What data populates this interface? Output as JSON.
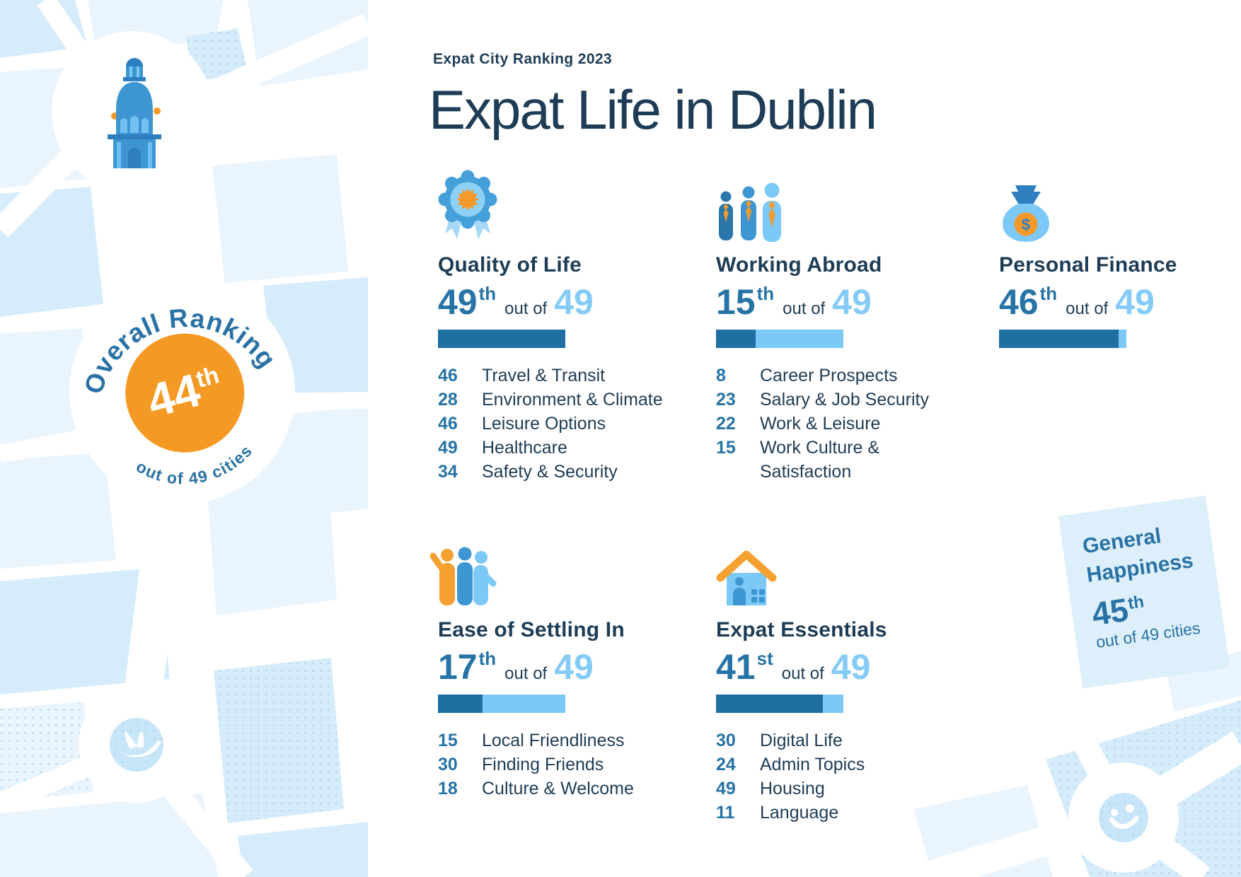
{
  "header": {
    "eyebrow": "Expat City Ranking 2023",
    "title": "Expat Life in Dublin"
  },
  "overall": {
    "label": "Overall Ranking",
    "rank": "44",
    "suffix": "th",
    "sub": "out of 49 cities"
  },
  "general_happiness": {
    "title": "General Happiness",
    "rank": "45",
    "suffix": "th",
    "sub": "out of 49 cities"
  },
  "categories": [
    {
      "title": "Quality of Life",
      "icon": "rosette-badge-icon",
      "rank": "49",
      "suffix": "th",
      "out_of_label": "out of",
      "total": "49",
      "bar_pct": 100,
      "subcategories": [
        {
          "rank": "46",
          "label": "Travel & Transit"
        },
        {
          "rank": "28",
          "label": "Environment & Climate"
        },
        {
          "rank": "46",
          "label": "Leisure Options"
        },
        {
          "rank": "49",
          "label": "Healthcare"
        },
        {
          "rank": "34",
          "label": "Safety & Security"
        }
      ]
    },
    {
      "title": "Working Abroad",
      "icon": "business-people-icon",
      "rank": "15",
      "suffix": "th",
      "out_of_label": "out of",
      "total": "49",
      "bar_pct": 31,
      "subcategories": [
        {
          "rank": "8",
          "label": "Career Prospects"
        },
        {
          "rank": "23",
          "label": "Salary & Job Security"
        },
        {
          "rank": "22",
          "label": "Work & Leisure"
        },
        {
          "rank": "15",
          "label": "Work Culture & Satisfaction"
        }
      ]
    },
    {
      "title": "Personal Finance",
      "icon": "money-bag-icon",
      "icon_glyph": "$",
      "rank": "46",
      "suffix": "th",
      "out_of_label": "out of",
      "total": "49",
      "bar_pct": 94,
      "subcategories": []
    },
    {
      "title": "Ease of Settling In",
      "icon": "friends-group-icon",
      "rank": "17",
      "suffix": "th",
      "out_of_label": "out of",
      "total": "49",
      "bar_pct": 35,
      "subcategories": [
        {
          "rank": "15",
          "label": "Local Friendliness"
        },
        {
          "rank": "30",
          "label": "Finding Friends"
        },
        {
          "rank": "18",
          "label": "Culture & Welcome"
        }
      ]
    },
    {
      "title": "Expat Essentials",
      "icon": "house-icon",
      "rank": "41",
      "suffix": "st",
      "out_of_label": "out of",
      "total": "49",
      "bar_pct": 84,
      "subcategories": [
        {
          "rank": "30",
          "label": "Digital Life"
        },
        {
          "rank": "24",
          "label": "Admin Topics"
        },
        {
          "rank": "49",
          "label": "Housing"
        },
        {
          "rank": "11",
          "label": "Language"
        }
      ]
    }
  ],
  "chart_data": {
    "type": "bar",
    "title": "Expat Life in Dublin — Expat City Ranking 2023",
    "total_cities": 49,
    "overall_rank": 44,
    "general_happiness_rank": 45,
    "categories": [
      "Quality of Life",
      "Working Abroad",
      "Personal Finance",
      "Ease of Settling In",
      "Expat Essentials"
    ],
    "values": [
      49,
      15,
      46,
      17,
      41
    ],
    "subcategory_ranks": {
      "Quality of Life": {
        "Travel & Transit": 46,
        "Environment & Climate": 28,
        "Leisure Options": 46,
        "Healthcare": 49,
        "Safety & Security": 34
      },
      "Working Abroad": {
        "Career Prospects": 8,
        "Salary & Job Security": 23,
        "Work & Leisure": 22,
        "Work Culture & Satisfaction": 15
      },
      "Ease of Settling In": {
        "Local Friendliness": 15,
        "Finding Friends": 30,
        "Culture & Welcome": 18
      },
      "Expat Essentials": {
        "Digital Life": 30,
        "Admin Topics": 24,
        "Housing": 49,
        "Language": 11
      }
    }
  },
  "colors": {
    "navy_text": "#1e3c55",
    "blue_number": "#2673a6",
    "light_blue_number": "#85cbf8",
    "bar_dark": "#1f6fa3",
    "bar_light": "#7cc8f7",
    "orange": "#f5992b",
    "badge_orange": "#f49a24",
    "map_block": "#d7ecfb",
    "map_block_pale": "#e9f4fd",
    "icon_circle": "#c9e5f9",
    "happiness_card_bg": "#ddeffb"
  }
}
